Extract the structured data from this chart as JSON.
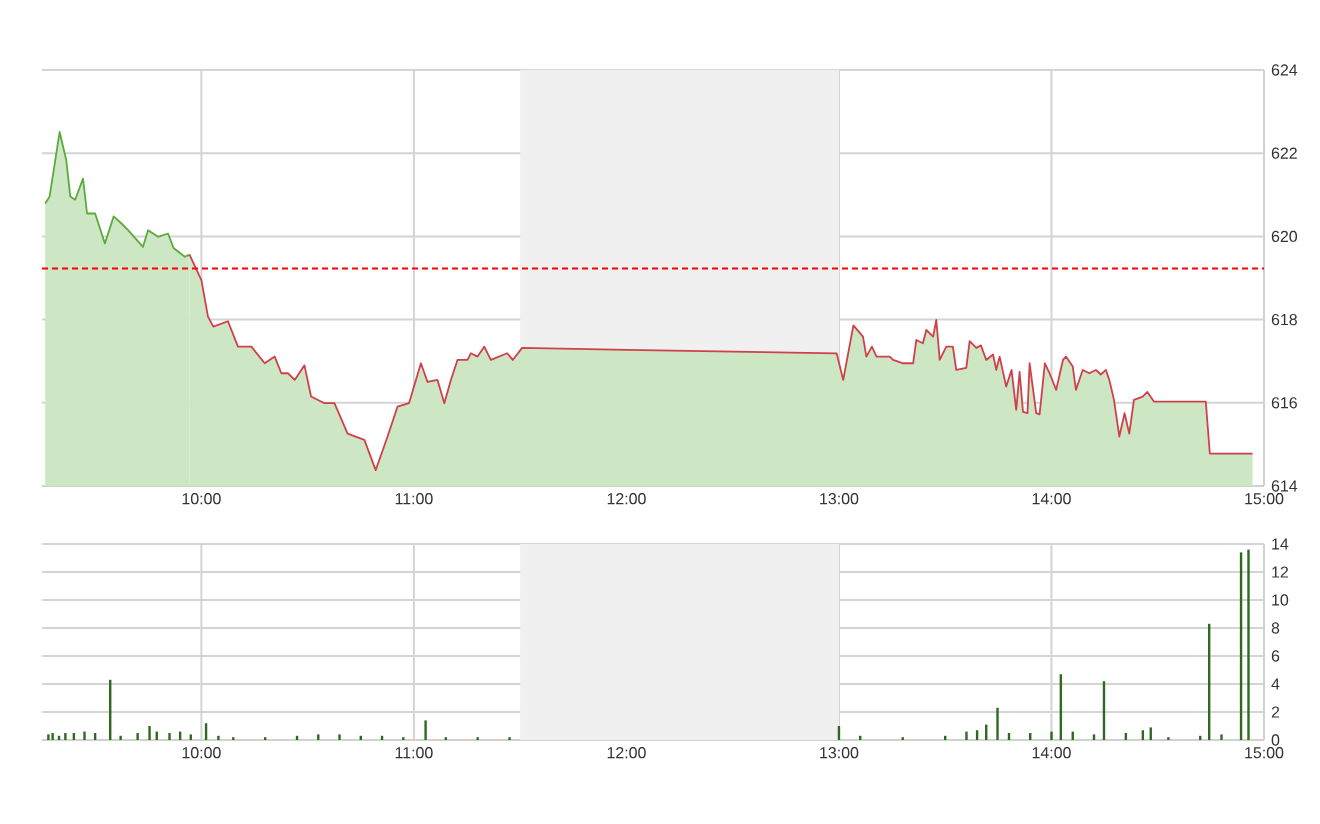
{
  "chart_data": [
    {
      "type": "area",
      "xlim": [
        9.25,
        15
      ],
      "ylim": [
        614,
        624
      ],
      "xticks": [
        {
          "value": 10,
          "label": "10:00"
        },
        {
          "value": 11,
          "label": "11:00"
        },
        {
          "value": 12,
          "label": "12:00"
        },
        {
          "value": 13,
          "label": "13:00"
        },
        {
          "value": 14,
          "label": "14:00"
        },
        {
          "value": 15,
          "label": "15:00"
        }
      ],
      "yticks": [
        614,
        616,
        618,
        620,
        622,
        624
      ],
      "grid": true,
      "bands": [
        {
          "axis": "x",
          "from": 11.5,
          "to": 13,
          "color": "#f0f0f0"
        }
      ],
      "ref_lines": [
        {
          "axis": "y",
          "value": 619.23,
          "color": "#ff0000",
          "line_style": "dashed"
        }
      ],
      "series": [
        {
          "color": "#5aaa3c",
          "x": [
            9.265,
            9.286,
            9.333,
            9.349,
            9.364,
            9.383,
            9.406,
            9.443,
            9.462,
            9.5,
            9.546,
            9.587,
            9.624,
            9.655,
            9.725,
            9.749,
            9.796,
            9.843,
            9.869,
            9.922,
            9.944
          ],
          "values": [
            620.79,
            620.96,
            622.51,
            622.16,
            621.84,
            620.96,
            620.88,
            621.39,
            620.55,
            620.55,
            619.83,
            620.48,
            620.31,
            620.15,
            619.75,
            620.15,
            619.99,
            620.07,
            619.72,
            619.51,
            619.56
          ]
        },
        {
          "color": "#d0404a",
          "x": [
            9.944,
            10.0,
            10.031,
            10.056,
            10.125,
            10.172,
            10.235,
            10.298,
            10.345,
            10.376,
            10.407,
            10.439,
            10.485,
            10.516,
            10.579,
            10.626,
            10.688,
            10.767,
            10.82,
            10.876,
            10.923,
            10.977,
            11.033,
            11.064,
            11.111,
            11.143,
            11.174,
            11.205,
            11.252,
            11.268,
            11.299,
            11.331,
            11.362,
            11.439,
            11.465,
            11.509,
            12.003,
            12.989,
            13.02,
            13.068,
            13.113,
            13.129,
            13.155,
            13.177,
            13.239,
            13.255,
            13.302,
            13.349,
            13.364,
            13.395,
            13.411,
            13.443,
            13.458,
            13.474,
            13.505,
            13.536,
            13.552,
            13.599,
            13.615,
            13.646,
            13.668,
            13.693,
            13.725,
            13.74,
            13.756,
            13.787,
            13.812,
            13.834,
            13.85,
            13.866,
            13.887,
            13.897,
            13.928,
            13.944,
            13.969,
            13.991,
            14.022,
            14.054,
            14.068,
            14.1,
            14.115,
            14.147,
            14.178,
            14.209,
            14.232,
            14.256,
            14.272,
            14.294,
            14.319,
            14.344,
            14.366,
            14.388,
            14.429,
            14.451,
            14.482,
            14.726,
            14.745,
            14.946
          ],
          "values": [
            619.56,
            618.95,
            618.07,
            617.83,
            617.96,
            617.35,
            617.35,
            616.95,
            617.11,
            616.71,
            616.71,
            616.55,
            616.9,
            616.15,
            615.99,
            615.99,
            615.26,
            615.11,
            614.38,
            615.19,
            615.91,
            615.99,
            616.95,
            616.5,
            616.55,
            615.99,
            616.55,
            617.03,
            617.03,
            617.19,
            617.11,
            617.35,
            617.03,
            617.19,
            617.03,
            617.32,
            617.27,
            617.19,
            616.55,
            617.86,
            617.59,
            617.11,
            617.35,
            617.11,
            617.11,
            617.03,
            616.95,
            616.95,
            617.51,
            617.43,
            617.75,
            617.59,
            617.99,
            617.03,
            617.35,
            617.35,
            616.79,
            616.84,
            617.48,
            617.32,
            617.38,
            617.03,
            617.16,
            616.79,
            617.11,
            616.39,
            616.79,
            615.83,
            616.74,
            615.78,
            615.75,
            616.95,
            615.75,
            615.72,
            616.95,
            616.71,
            616.31,
            617.03,
            617.11,
            616.87,
            616.31,
            616.79,
            616.71,
            616.79,
            616.68,
            616.79,
            616.55,
            616.07,
            615.19,
            615.75,
            615.26,
            616.07,
            616.15,
            616.26,
            616.03,
            616.03,
            614.78,
            614.78
          ]
        }
      ]
    },
    {
      "type": "bar",
      "xlim": [
        9.25,
        15
      ],
      "ylim": [
        0,
        14
      ],
      "xticks": [
        {
          "value": 10,
          "label": "10:00"
        },
        {
          "value": 11,
          "label": "11:00"
        },
        {
          "value": 12,
          "label": "12:00"
        },
        {
          "value": 13,
          "label": "13:00"
        },
        {
          "value": 14,
          "label": "14:00"
        },
        {
          "value": 15,
          "label": "15:00"
        }
      ],
      "yticks": [
        0,
        2,
        4,
        6,
        8,
        10,
        12,
        14
      ],
      "grid": true,
      "bands": [
        {
          "axis": "x",
          "from": 11.5,
          "to": 13,
          "color": "#f0f0f0"
        }
      ],
      "series": [
        {
          "color": "#2d6a1f",
          "x": [
            9.28,
            9.3,
            9.33,
            9.36,
            9.4,
            9.45,
            9.5,
            9.571,
            9.62,
            9.7,
            9.756,
            9.79,
            9.85,
            9.9,
            9.95,
            10.022,
            10.08,
            10.15,
            10.3,
            10.45,
            10.55,
            10.65,
            10.75,
            10.85,
            10.95,
            11.055,
            11.15,
            11.3,
            11.45,
            13.0,
            13.1,
            13.3,
            13.5,
            13.6,
            13.65,
            13.693,
            13.746,
            13.8,
            13.9,
            14.0,
            14.044,
            14.1,
            14.2,
            14.247,
            14.35,
            14.43,
            14.467,
            14.55,
            14.7,
            14.742,
            14.8,
            14.892,
            14.927
          ],
          "values": [
            0.4,
            0.5,
            0.3,
            0.5,
            0.5,
            0.6,
            0.5,
            4.3,
            0.3,
            0.5,
            1.0,
            0.6,
            0.5,
            0.6,
            0.4,
            1.2,
            0.3,
            0.2,
            0.2,
            0.3,
            0.4,
            0.4,
            0.3,
            0.3,
            0.2,
            1.4,
            0.2,
            0.2,
            0.2,
            1.0,
            0.3,
            0.2,
            0.3,
            0.6,
            0.7,
            1.1,
            2.3,
            0.5,
            0.5,
            0.6,
            4.7,
            0.6,
            0.4,
            4.2,
            0.5,
            0.7,
            0.9,
            0.2,
            0.3,
            8.3,
            0.4,
            13.4,
            13.6
          ]
        }
      ]
    }
  ]
}
